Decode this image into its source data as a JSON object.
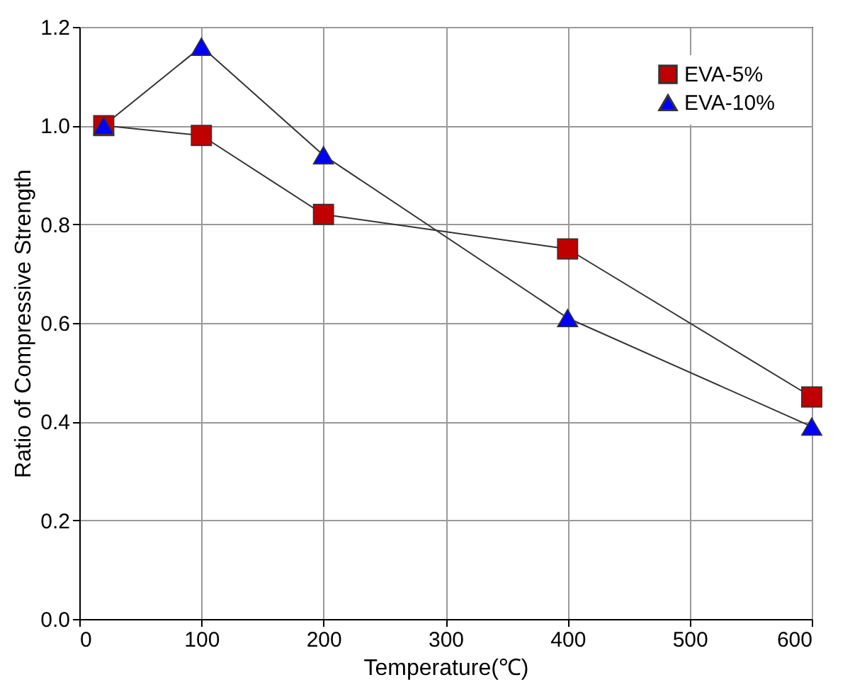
{
  "chart_data": {
    "type": "line",
    "xlabel": "Temperature(℃)",
    "ylabel": "Ratio of Compressive Strength",
    "x": [
      20,
      100,
      200,
      400,
      600
    ],
    "series": [
      {
        "name": "EVA-5%",
        "color": "#c00000",
        "marker": "square",
        "values": [
          1.0,
          0.98,
          0.82,
          0.75,
          0.45
        ]
      },
      {
        "name": "EVA-10%",
        "color": "#0000ff",
        "marker": "triangle",
        "values": [
          1.0,
          1.16,
          0.94,
          0.61,
          0.39
        ]
      }
    ],
    "xlim": [
      0,
      600
    ],
    "xticks": [
      0,
      100,
      200,
      300,
      400,
      500,
      600
    ],
    "ylim": [
      0,
      1.2
    ],
    "yticks": [
      {
        "value": 0,
        "label": "0.0"
      },
      {
        "value": 0.2,
        "label": "0.2"
      },
      {
        "value": 0.4,
        "label": "0.4"
      },
      {
        "value": 0.6,
        "label": "0.6"
      },
      {
        "value": 0.8,
        "label": "0.8"
      },
      {
        "value": 1.0,
        "label": "1.0"
      },
      {
        "value": 1.2,
        "label": "1.2"
      }
    ],
    "grid": true,
    "legend": "top right",
    "line_style": "solid"
  }
}
